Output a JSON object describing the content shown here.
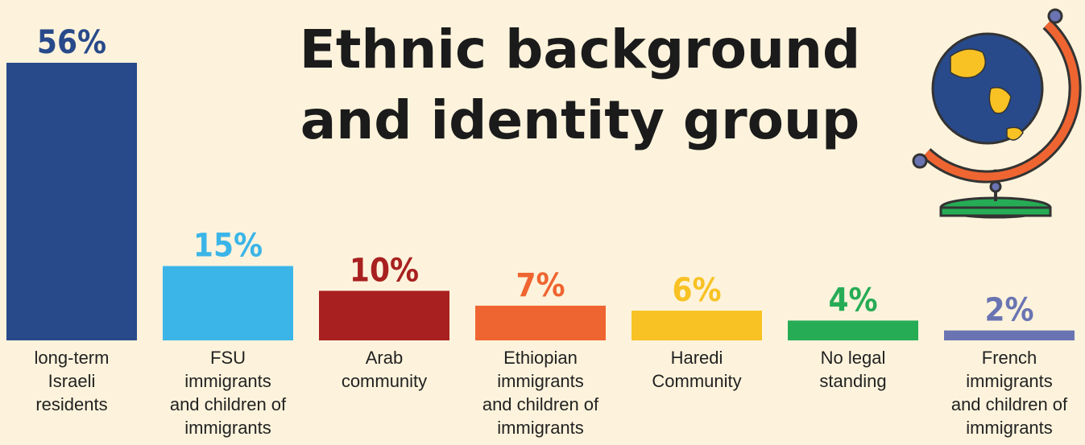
{
  "chart_data": {
    "type": "bar",
    "title": "Ethnic background\nand identity group",
    "categories": [
      "long-term\nIsraeli\nresidents",
      "FSU\nimmigrants\nand children of\nimmigrants",
      "Arab\ncommunity",
      "Ethiopian\nimmigrants\nand children of\nimmigrants",
      "Haredi\nCommunity",
      "No legal\nstanding",
      "French\nimmigrants\nand children of\nimmigrants"
    ],
    "values": [
      56,
      15,
      10,
      7,
      6,
      4,
      2
    ],
    "value_labels": [
      "56%",
      "15%",
      "10%",
      "7%",
      "6%",
      "4%",
      "2%"
    ],
    "colors": [
      "#284a8b",
      "#3bb5e8",
      "#a82120",
      "#ef6531",
      "#f8c224",
      "#27ac56",
      "#6a74b2"
    ]
  }
}
